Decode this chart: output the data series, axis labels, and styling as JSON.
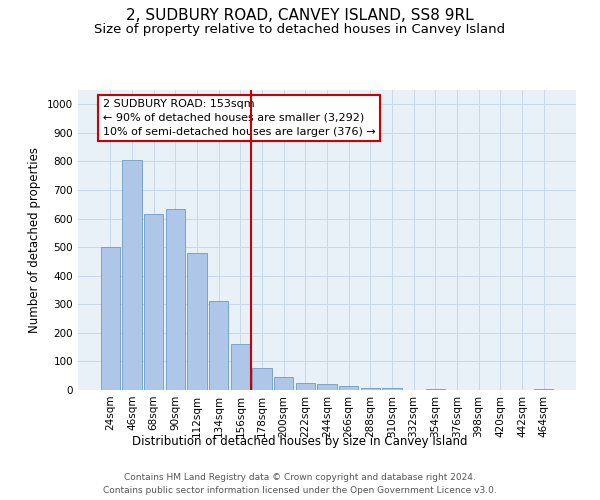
{
  "title": "2, SUDBURY ROAD, CANVEY ISLAND, SS8 9RL",
  "subtitle": "Size of property relative to detached houses in Canvey Island",
  "xlabel": "Distribution of detached houses by size in Canvey Island",
  "ylabel": "Number of detached properties",
  "footnote1": "Contains HM Land Registry data © Crown copyright and database right 2024.",
  "footnote2": "Contains public sector information licensed under the Open Government Licence v3.0.",
  "bar_labels": [
    "24sqm",
    "46sqm",
    "68sqm",
    "90sqm",
    "112sqm",
    "134sqm",
    "156sqm",
    "178sqm",
    "200sqm",
    "222sqm",
    "244sqm",
    "266sqm",
    "288sqm",
    "310sqm",
    "332sqm",
    "354sqm",
    "376sqm",
    "398sqm",
    "420sqm",
    "442sqm",
    "464sqm"
  ],
  "bar_values": [
    500,
    805,
    615,
    635,
    480,
    310,
    160,
    78,
    45,
    25,
    20,
    13,
    8,
    6,
    0,
    2,
    0,
    1,
    0,
    0,
    2
  ],
  "bar_color": "#aec6e8",
  "bar_edge_color": "#5a8fc0",
  "vline_x": 6.5,
  "vline_color": "#cc0000",
  "annotation_text": "2 SUDBURY ROAD: 153sqm\n← 90% of detached houses are smaller (3,292)\n10% of semi-detached houses are larger (376) →",
  "annotation_box_color": "#cc0000",
  "ylim": [
    0,
    1050
  ],
  "yticks": [
    0,
    100,
    200,
    300,
    400,
    500,
    600,
    700,
    800,
    900,
    1000
  ],
  "grid_color": "#c8d8e8",
  "background_color": "#e8f0f8",
  "title_fontsize": 11,
  "subtitle_fontsize": 9.5,
  "axis_label_fontsize": 8.5,
  "tick_fontsize": 7.5,
  "annotation_fontsize": 8,
  "footnote_fontsize": 6.5
}
